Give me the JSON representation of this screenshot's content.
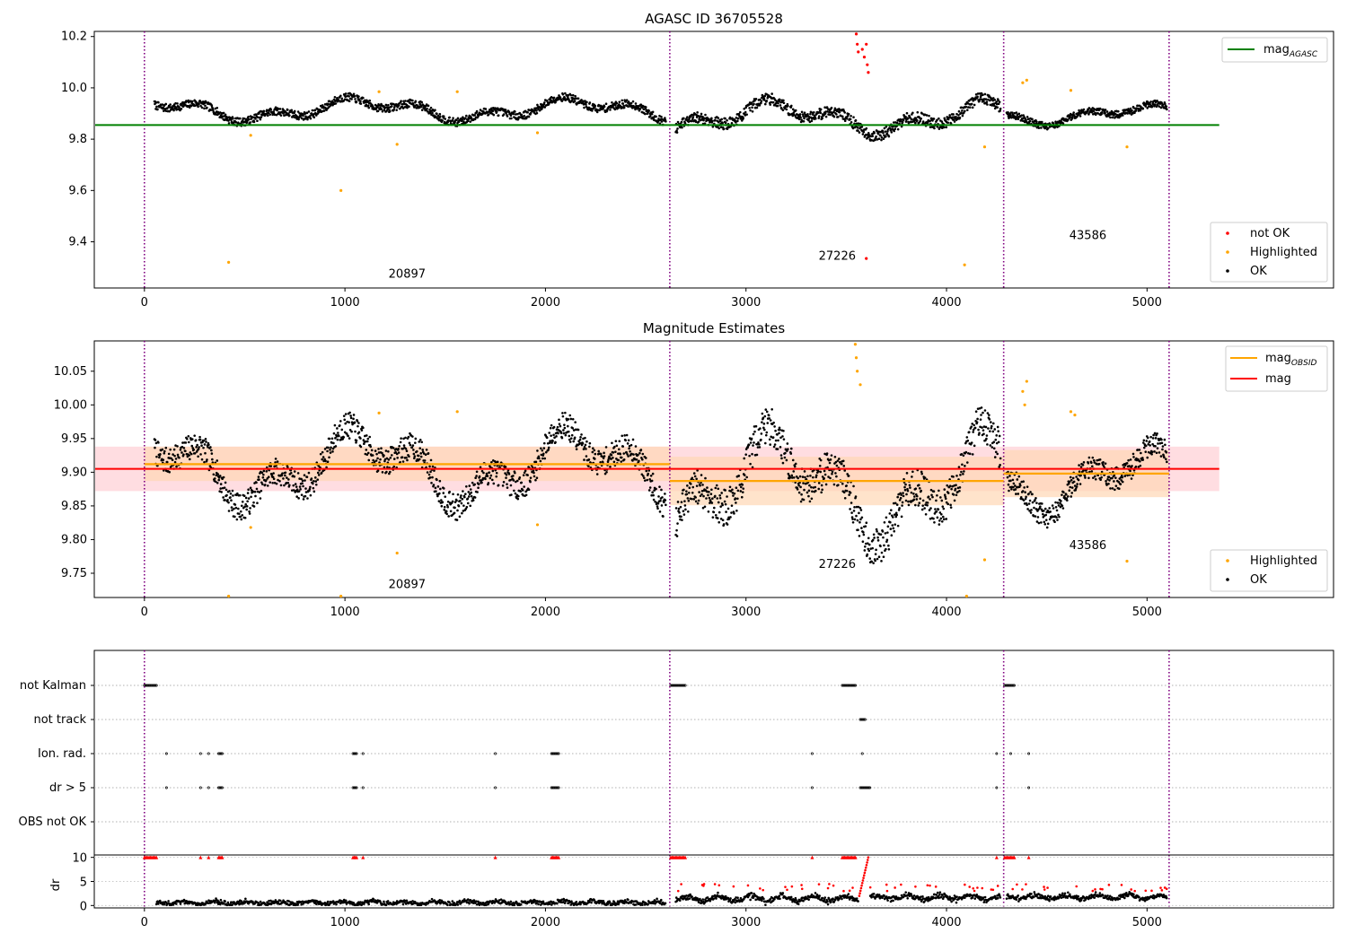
{
  "figure": {
    "panel1_title": "AGASC ID 36705528",
    "panel2_title": "Magnitude Estimates"
  },
  "colors": {
    "ok": "#000000",
    "highlighted": "#ffa500",
    "not_ok": "#ff0000",
    "mag_agasc": "#008000",
    "mag_obsid": "#ffa500",
    "mag": "#ff0000",
    "divider": "#800080",
    "band_obsid": "#ffd7b5",
    "band_mag": "#ffd5d9"
  },
  "legends": {
    "panel1_line": {
      "main": "mag",
      "sub": "AGASC"
    },
    "panel1_points": [
      "not OK",
      "Highlighted",
      "OK"
    ],
    "panel2_lines": [
      {
        "main": "mag",
        "sub": "OBSID"
      },
      {
        "main": "mag",
        "sub": ""
      }
    ],
    "panel2_points": [
      "Highlighted",
      "OK"
    ]
  },
  "chart_data": [
    {
      "type": "scatter",
      "title": "AGASC ID 36705528",
      "xlim": [
        -250,
        5930
      ],
      "ylim": [
        9.22,
        10.22
      ],
      "x_ticks": [
        0,
        1000,
        2000,
        3000,
        4000,
        5000
      ],
      "y_ticks": [
        9.4,
        9.6,
        9.8,
        10.0,
        10.2
      ],
      "y_tick_labels": [
        "9.4",
        "9.6",
        "9.8",
        "10.0",
        "10.2"
      ],
      "obs_boundaries": [
        0,
        2620,
        4285,
        5110
      ],
      "obsids": [
        {
          "label": "20897",
          "x": 1310,
          "y": 9.26
        },
        {
          "label": "27226",
          "x": 3455,
          "y": 9.33
        },
        {
          "label": "43586",
          "x": 4705,
          "y": 9.41
        }
      ],
      "mag_agasc": 9.855,
      "segments": [
        {
          "range": [
            50,
            2600
          ],
          "base": 9.915,
          "amp": 0.035
        },
        {
          "range": [
            2650,
            4270
          ],
          "base": 9.885,
          "amp": 0.05
        },
        {
          "range": [
            4300,
            5100
          ],
          "base": 9.895,
          "amp": 0.03
        }
      ],
      "highlighted": [
        [
          420,
          9.32
        ],
        [
          530,
          9.815
        ],
        [
          980,
          9.6
        ],
        [
          1260,
          9.78
        ],
        [
          1960,
          9.825
        ],
        [
          4090,
          9.31
        ],
        [
          4190,
          9.77
        ],
        [
          4900,
          9.77
        ],
        [
          1560,
          9.985
        ],
        [
          1170,
          9.985
        ],
        [
          4620,
          9.99
        ],
        [
          4380,
          10.02
        ],
        [
          4400,
          10.03
        ]
      ],
      "not_ok": [
        [
          3550,
          10.21
        ],
        [
          3555,
          10.17
        ],
        [
          3560,
          10.14
        ],
        [
          3580,
          10.15
        ],
        [
          3590,
          10.12
        ],
        [
          3600,
          10.17
        ],
        [
          3605,
          10.09
        ],
        [
          3610,
          10.06
        ],
        [
          3600,
          9.335
        ]
      ],
      "legend_position": "top-right / lower-right"
    },
    {
      "type": "scatter",
      "title": "Magnitude Estimates",
      "xlim": [
        -250,
        5930
      ],
      "ylim": [
        9.714,
        10.095
      ],
      "x_ticks": [
        0,
        1000,
        2000,
        3000,
        4000,
        5000
      ],
      "y_ticks": [
        9.75,
        9.8,
        9.85,
        9.9,
        9.95,
        10.0,
        10.05
      ],
      "y_tick_labels": [
        "9.75",
        "9.80",
        "9.85",
        "9.90",
        "9.95",
        "10.00",
        "10.05"
      ],
      "obsids": [
        {
          "label": "20897",
          "x": 1310,
          "y": 9.728
        },
        {
          "label": "27226",
          "x": 3455,
          "y": 9.758
        },
        {
          "label": "43586",
          "x": 4705,
          "y": 9.786
        }
      ],
      "mag": 9.905,
      "mag_band": [
        9.872,
        9.938
      ],
      "mag_obsid": [
        {
          "range": [
            0,
            2620
          ],
          "value": 9.912,
          "band": [
            9.887,
            9.938
          ]
        },
        {
          "range": [
            2620,
            4285
          ],
          "value": 9.887,
          "band": [
            9.851,
            9.923
          ]
        },
        {
          "range": [
            4285,
            5110
          ],
          "value": 9.898,
          "band": [
            9.863,
            9.933
          ]
        }
      ],
      "highlighted": [
        [
          420,
          9.716
        ],
        [
          530,
          9.818
        ],
        [
          980,
          9.716
        ],
        [
          1260,
          9.78
        ],
        [
          1960,
          9.822
        ],
        [
          4100,
          9.716
        ],
        [
          4190,
          9.77
        ],
        [
          4900,
          9.768
        ],
        [
          1170,
          9.988
        ],
        [
          1560,
          9.99
        ],
        [
          3545,
          10.09
        ],
        [
          3550,
          10.07
        ],
        [
          3555,
          10.05
        ],
        [
          3570,
          10.03
        ],
        [
          4380,
          10.02
        ],
        [
          4390,
          10.0
        ],
        [
          4400,
          10.035
        ],
        [
          4620,
          9.99
        ],
        [
          4640,
          9.985
        ]
      ],
      "legend_position": "top-right / lower-right"
    },
    {
      "type": "scatter",
      "title": "",
      "xlim": [
        -250,
        5930
      ],
      "x_ticks": [
        0,
        1000,
        2000,
        3000,
        4000,
        5000
      ],
      "flag_labels": [
        "not Kalman",
        "not track",
        "Ion. rad.",
        "dr > 5",
        "OBS not OK"
      ],
      "flags": {
        "not Kalman": [
          [
            0,
            60
          ],
          [
            2625,
            2700
          ],
          [
            3480,
            3550
          ],
          [
            4290,
            4340
          ]
        ],
        "not track": [
          [
            3570,
            3595
          ]
        ],
        "Ion. rad.": [
          [
            110,
            110
          ],
          [
            280,
            280
          ],
          [
            320,
            320
          ],
          [
            370,
            390
          ],
          [
            1040,
            1060
          ],
          [
            1090,
            1090
          ],
          [
            1750,
            1750
          ],
          [
            2030,
            2070
          ],
          [
            3330,
            3330
          ],
          [
            3580,
            3580
          ],
          [
            4250,
            4250
          ],
          [
            4320,
            4320
          ],
          [
            4410,
            4410
          ]
        ],
        "dr > 5": [
          [
            110,
            110
          ],
          [
            280,
            280
          ],
          [
            320,
            320
          ],
          [
            370,
            390
          ],
          [
            1040,
            1060
          ],
          [
            1090,
            1090
          ],
          [
            1750,
            1750
          ],
          [
            2030,
            2070
          ],
          [
            3330,
            3330
          ],
          [
            3570,
            3620
          ],
          [
            4250,
            4250
          ],
          [
            4410,
            4410
          ]
        ],
        "OBS not OK": []
      }
    },
    {
      "type": "scatter",
      "title": "",
      "ylabel": "dr",
      "xlim": [
        -250,
        5930
      ],
      "ylim": [
        -0.5,
        10.5
      ],
      "y_ticks": [
        0,
        5,
        10
      ],
      "y_tick_labels": [
        "0",
        "5",
        "10"
      ],
      "x_ticks": [
        0,
        1000,
        2000,
        3000,
        4000,
        5000
      ],
      "clipped_at_10": [
        [
          0,
          60
        ],
        [
          280,
          280
        ],
        [
          320,
          320
        ],
        [
          370,
          390
        ],
        [
          1040,
          1060
        ],
        [
          1090,
          1090
        ],
        [
          1750,
          1750
        ],
        [
          2030,
          2070
        ],
        [
          2625,
          2700
        ],
        [
          3330,
          3330
        ],
        [
          3480,
          3550
        ],
        [
          4250,
          4250
        ],
        [
          4290,
          4340
        ],
        [
          4410,
          4410
        ]
      ]
    }
  ]
}
